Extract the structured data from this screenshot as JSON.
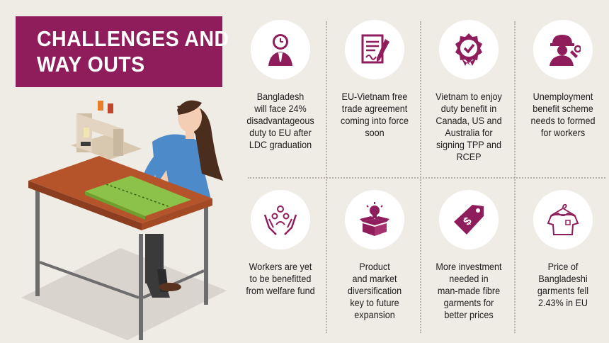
{
  "title": {
    "line1": "CHALLENGES AND",
    "line2": "WAY OUTS"
  },
  "colors": {
    "accent": "#8f1d5b",
    "background": "#efebe5"
  },
  "items": [
    {
      "icon": "businessman-clock-icon",
      "lines": [
        "Bangladesh",
        "will face 24%",
        "disadvantageous",
        "duty to EU after",
        "LDC graduation"
      ]
    },
    {
      "icon": "contract-document-icon",
      "lines": [
        "EU-Vietnam free",
        "trade agreement",
        "coming into force",
        "soon"
      ]
    },
    {
      "icon": "certified-badge-icon",
      "lines": [
        "Vietnam to enjoy",
        "duty benefit in",
        "Canada, US and",
        "Australia for",
        "signing TPP and",
        "RCEP"
      ]
    },
    {
      "icon": "worker-helmet-icon",
      "lines": [
        "Unemployment",
        "benefit scheme",
        "needs to formed",
        "for workers"
      ]
    },
    {
      "icon": "hands-people-care-icon",
      "lines": [
        "Workers are yet",
        "to be benefitted",
        "from welfare fund"
      ]
    },
    {
      "icon": "box-lightbulb-icon",
      "lines": [
        "Product",
        "and market",
        "diversification",
        "key to future",
        "expansion"
      ]
    },
    {
      "icon": "price-tag-icon",
      "lines": [
        "More investment",
        "needed in",
        "man-made fibre",
        "garments for",
        "better prices"
      ]
    },
    {
      "icon": "tshirt-hanger-icon",
      "lines": [
        "Price of",
        "Bangladeshi",
        "garments fell",
        "2.43% in EU"
      ]
    }
  ]
}
